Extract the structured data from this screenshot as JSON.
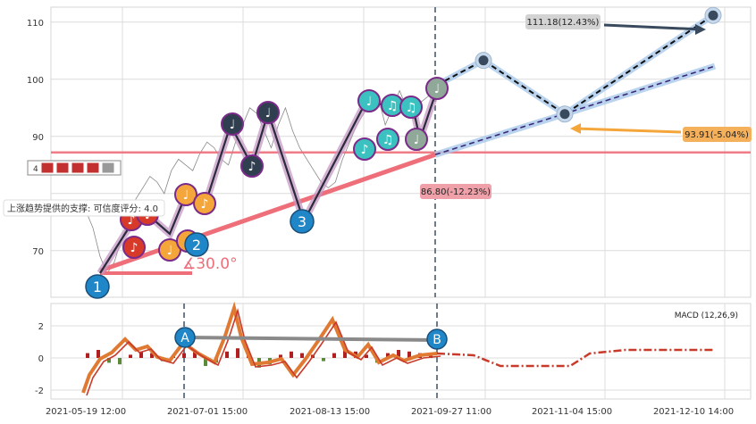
{
  "chart_data": [
    {
      "type": "line",
      "panel": "price",
      "y_ticks": [
        70,
        80,
        90,
        100,
        110
      ],
      "y_tick_labels": [
        "70",
        "",
        "90",
        "100",
        "110"
      ],
      "ylim": [
        62,
        115.5
      ],
      "x_tick_labels": [
        "2021-05-19 12:00",
        "2021-07-01 15:00",
        "2021-08-13 15:00",
        "2021-09-27 11:00",
        "2021-11-04 15:00",
        "2021-12-10 14:00"
      ],
      "grid": true,
      "price_series": [
        {
          "name": "",
          "points": [
            [
              0,
              77
            ],
            [
              2,
              74
            ],
            [
              4,
              69
            ],
            [
              6,
              66
            ],
            [
              8,
              68
            ],
            [
              10,
              72
            ],
            [
              12,
              75
            ],
            [
              14,
              79
            ],
            [
              16,
              81
            ],
            [
              18,
              83
            ],
            [
              20,
              82
            ],
            [
              22,
              80
            ],
            [
              24,
              84
            ],
            [
              26,
              86
            ],
            [
              28,
              85
            ],
            [
              30,
              84
            ],
            [
              32,
              87
            ],
            [
              34,
              89
            ],
            [
              36,
              88
            ],
            [
              38,
              86
            ],
            [
              40,
              85
            ],
            [
              42,
              89
            ],
            [
              44,
              92
            ],
            [
              46,
              95
            ],
            [
              48,
              94
            ],
            [
              50,
              91
            ],
            [
              52,
              88
            ],
            [
              54,
              92
            ],
            [
              56,
              95
            ],
            [
              58,
              91
            ],
            [
              60,
              88
            ],
            [
              62,
              86
            ],
            [
              64,
              84
            ],
            [
              66,
              82
            ],
            [
              68,
              81
            ],
            [
              70,
              82
            ],
            [
              72,
              86
            ],
            [
              74,
              89
            ],
            [
              76,
              92
            ],
            [
              78,
              94
            ],
            [
              80,
              96
            ],
            [
              82,
              97
            ],
            [
              84,
              92
            ],
            [
              86,
              95
            ],
            [
              88,
              98
            ],
            [
              90,
              95
            ],
            [
              92,
              93
            ],
            [
              94,
              96
            ],
            [
              96,
              97
            ],
            [
              98,
              99
            ]
          ]
        }
      ],
      "wave_points": [
        {
          "label": "1",
          "value": 66.5
        },
        {
          "label": "2",
          "value": 74.5
        },
        {
          "label": "3",
          "value": 80.5
        }
      ],
      "support_line": {
        "label": "上涨趋势提供的支撑: 可信度评分: 4.0",
        "angle_label": "∡30.0°",
        "start_value": 66.5,
        "end_value": 86.8
      },
      "horizontal_level": 87.2,
      "markers": {
        "short_label": "4"
      },
      "projections": {
        "upper": {
          "label": "111.18(12.43%)",
          "value": 111.18
        },
        "middle": {
          "label": "93.91(-5.04%)",
          "value": 93.91
        },
        "current": {
          "label": "86.80(-12.23%)",
          "value": 86.8
        },
        "peak_value": 103.3,
        "dashed_upper_end": 102.3
      },
      "note_icon_glyphs": [
        "♪",
        "♩",
        "♫"
      ],
      "colors": {
        "red": "#d83a2a",
        "orange": "#f4a63a",
        "dark": "#2f3f50",
        "teal": "#3cc1c1",
        "grey": "#8fa898",
        "blue": "#1f86c8",
        "purple": "#7b2a8a",
        "support": "#ee6e79",
        "proj": "#a9c8ea"
      }
    },
    {
      "type": "line",
      "panel": "macd",
      "title": "MACD (12,26,9)",
      "y_ticks": [
        -2,
        0,
        2
      ],
      "ylim": [
        -2.3,
        3.4
      ],
      "markers": [
        {
          "label": "A",
          "value": 1.3
        },
        {
          "label": "B",
          "value": 1.2
        }
      ],
      "colors": {
        "macd": "#e07a33",
        "signal": "#c83a2a",
        "forecast": "#c83a2a",
        "hist_pos": "#b02020",
        "hist_neg": "#5a8a3a"
      }
    }
  ]
}
